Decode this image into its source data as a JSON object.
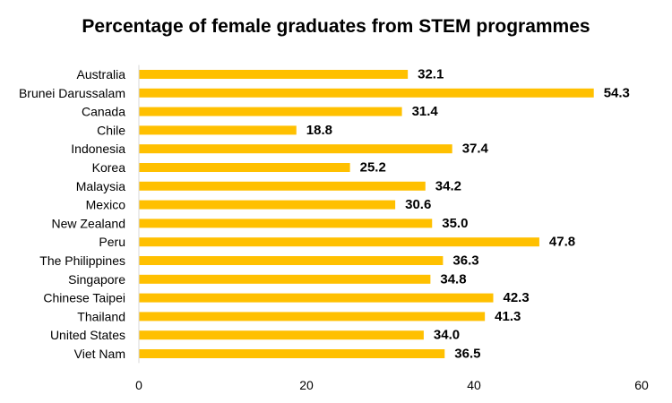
{
  "chart_data": {
    "type": "bar",
    "orientation": "horizontal",
    "title": "Percentage of female graduates from STEM programmes",
    "xlabel": "",
    "ylabel": "",
    "categories": [
      "Australia",
      "Brunei Darussalam",
      "Canada",
      "Chile",
      "Indonesia",
      "Korea",
      "Malaysia",
      "Mexico",
      "New Zealand",
      "Peru",
      "The Philippines",
      "Singapore",
      "Chinese Taipei",
      "Thailand",
      "United States",
      "Viet Nam"
    ],
    "values": [
      32.1,
      54.3,
      31.4,
      18.8,
      37.4,
      25.2,
      34.2,
      30.6,
      35.0,
      47.8,
      36.3,
      34.8,
      42.3,
      41.3,
      34.0,
      36.5
    ],
    "value_labels": [
      "32.1",
      "54.3",
      "31.4",
      "18.8",
      "37.4",
      "25.2",
      "34.2",
      "30.6",
      "35.0",
      "47.8",
      "36.3",
      "34.8",
      "42.3",
      "41.3",
      "34.0",
      "36.5"
    ],
    "xlim": [
      0,
      60
    ],
    "xticks": [
      0,
      20,
      40,
      60
    ],
    "xtick_labels": [
      "0",
      "20",
      "40",
      "60"
    ],
    "grid": false,
    "legend": "none",
    "colors": {
      "bar": "#FFC000",
      "axis": "#D9D9D9"
    }
  }
}
